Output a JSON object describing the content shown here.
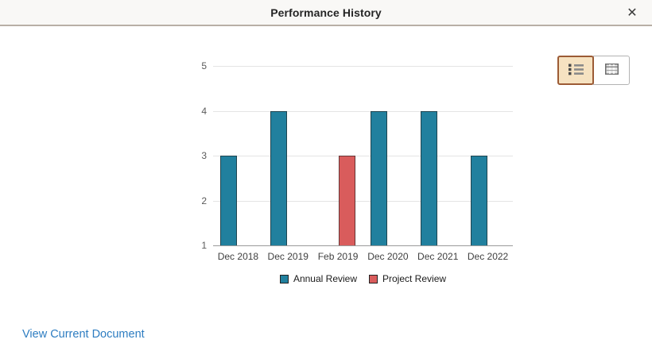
{
  "modal": {
    "title": "Performance History",
    "close_icon": "✕"
  },
  "toolbar": {
    "views": [
      {
        "name": "chart-view",
        "icon": "list-icon",
        "selected": true
      },
      {
        "name": "grid-view",
        "icon": "table-icon",
        "selected": false
      }
    ]
  },
  "chart_data": {
    "type": "bar",
    "title": "",
    "categories": [
      "Dec 2018",
      "Dec 2019",
      "Feb 2019",
      "Dec 2020",
      "Dec 2021",
      "Dec 2022"
    ],
    "series": [
      {
        "name": "Annual Review",
        "color": "#21809e",
        "values": [
          3,
          4,
          null,
          4,
          4,
          3
        ]
      },
      {
        "name": "Project Review",
        "color": "#d95c5c",
        "values": [
          null,
          null,
          3,
          null,
          null,
          null
        ]
      }
    ],
    "xlabel": "",
    "ylabel": "",
    "ylim": [
      1,
      5
    ],
    "yticks": [
      1,
      2,
      3,
      4,
      5
    ],
    "grid": true,
    "legend_position": "bottom"
  },
  "footer": {
    "link_label": "View Current Document"
  },
  "colors": {
    "annual_review": "#21809e",
    "project_review": "#d95c5c",
    "link": "#2e7dc1",
    "selected_view_bg": "#f6e2c1",
    "selected_view_border": "#9c5b35",
    "header_bg": "#f9f8f6"
  }
}
